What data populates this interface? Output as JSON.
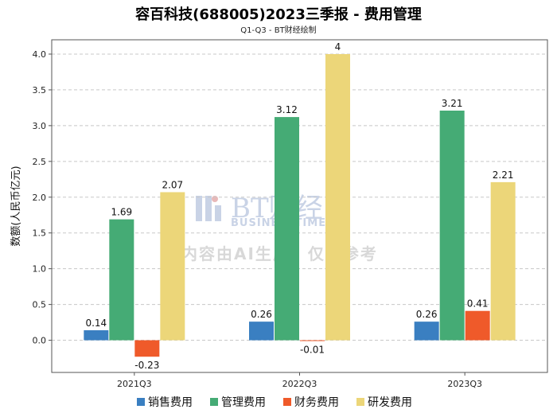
{
  "title": "容百科技(688005)2023三季报 - 费用管理",
  "subtitle": "Q1-Q3 - BT财经绘制",
  "watermark": {
    "brand": "BT财经",
    "brand_en": "BUSINESSTIMES",
    "notice": "内容由AI生成，仅供参考"
  },
  "chart_data": {
    "type": "bar",
    "categories": [
      "2021Q3",
      "2022Q3",
      "2023Q3"
    ],
    "ylabel": "数额(人民币亿元)",
    "xlabel": "",
    "ylim": [
      -0.45,
      4.2
    ],
    "yticks": [
      0.0,
      0.5,
      1.0,
      1.5,
      2.0,
      2.5,
      3.0,
      3.5,
      4.0
    ],
    "ytick_labels": [
      "0.0",
      "0.5",
      "1.0",
      "1.5",
      "2.0",
      "2.5",
      "3.0",
      "3.5",
      "4.0"
    ],
    "grid": true,
    "legend_position": "bottom",
    "series": [
      {
        "name": "销售费用",
        "color": "#3a7fc1",
        "values": [
          0.14,
          0.26,
          0.26
        ],
        "labels": [
          "0.14",
          "0.26",
          "0.26"
        ]
      },
      {
        "name": "管理费用",
        "color": "#45ab75",
        "values": [
          1.69,
          3.12,
          3.21
        ],
        "labels": [
          "1.69",
          "3.12",
          "3.21"
        ]
      },
      {
        "name": "财务费用",
        "color": "#ef5a2a",
        "values": [
          -0.23,
          -0.01,
          0.41
        ],
        "labels": [
          "-0.23",
          "-0.01",
          "0.41"
        ]
      },
      {
        "name": "研发费用",
        "color": "#ecd679",
        "values": [
          2.07,
          4.0,
          2.21
        ],
        "labels": [
          "2.07",
          "4",
          "2.21"
        ]
      }
    ]
  }
}
